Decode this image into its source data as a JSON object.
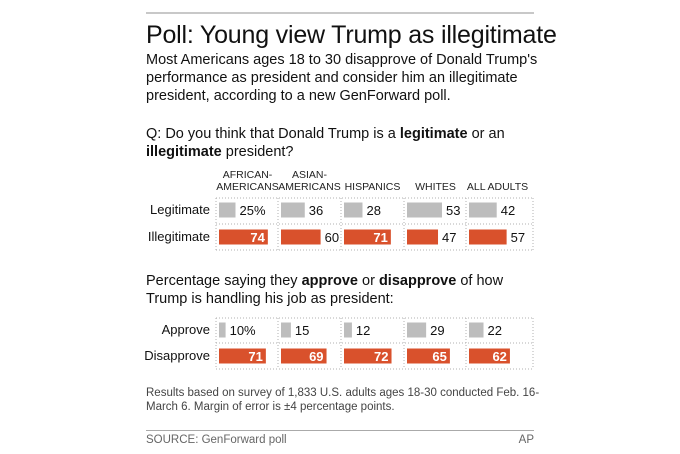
{
  "title": "Poll: Young view Trump as illegitimate",
  "subtitle": "Most Americans ages 18 to 30 disapprove of Donald Trump's performance as president and consider him an illegitimate president, according to a new GenForward poll.",
  "question1": {
    "prefix": "Q: Do you think that Donald Trump is a ",
    "bold1": "legitimate",
    "middle": " or an ",
    "bold2": "illegitimate",
    "suffix": " president?"
  },
  "question2": {
    "prefix": "Percentage saying they ",
    "bold1": "approve",
    "middle": " or ",
    "bold2": "disapprove",
    "suffix": " of how Trump is handling his job as president:"
  },
  "note": "Results based on survey of 1,833 U.S. adults ages 18-30 conducted Feb. 16-March 6. Margin of error is ±4 percentage points.",
  "source": "SOURCE: GenForward poll",
  "credit": "AP",
  "colors": {
    "gray": "#bdbdbd",
    "orange": "#d9512c",
    "grid": "#b0b0b0"
  },
  "chart_data": [
    {
      "type": "bar",
      "title": "Do you think that Donald Trump is a legitimate or an illegitimate president?",
      "categories": [
        "AFRICAN-AMERICANS",
        "ASIAN-AMERICANS",
        "HISPANICS",
        "WHITES",
        "ALL ADULTS"
      ],
      "category_lines": [
        [
          "AFRICAN-",
          "AMERICANS"
        ],
        [
          "ASIAN-",
          "AMERICANS"
        ],
        [
          "",
          "HISPANICS"
        ],
        [
          "",
          "WHITES"
        ],
        [
          "",
          "ALL ADULTS"
        ]
      ],
      "series": [
        {
          "name": "Legitimate",
          "color": "#bdbdbd",
          "values": [
            25,
            36,
            28,
            53,
            42
          ],
          "labels": [
            "25%",
            "36",
            "28",
            "53",
            "42"
          ]
        },
        {
          "name": "Illegitimate",
          "color": "#d9512c",
          "values": [
            74,
            60,
            71,
            47,
            57
          ],
          "labels": [
            "74",
            "60",
            "71",
            "47",
            "57"
          ]
        }
      ],
      "unit": "percent"
    },
    {
      "type": "bar",
      "title": "Percentage saying they approve or disapprove of how Trump is handling his job as president",
      "categories": [
        "AFRICAN-AMERICANS",
        "ASIAN-AMERICANS",
        "HISPANICS",
        "WHITES",
        "ALL ADULTS"
      ],
      "series": [
        {
          "name": "Approve",
          "color": "#bdbdbd",
          "values": [
            10,
            15,
            12,
            29,
            22
          ],
          "labels": [
            "10%",
            "15",
            "12",
            "29",
            "22"
          ]
        },
        {
          "name": "Disapprove",
          "color": "#d9512c",
          "values": [
            71,
            69,
            72,
            65,
            62
          ],
          "labels": [
            "71",
            "69",
            "72",
            "65",
            "62"
          ]
        }
      ],
      "unit": "percent"
    }
  ]
}
